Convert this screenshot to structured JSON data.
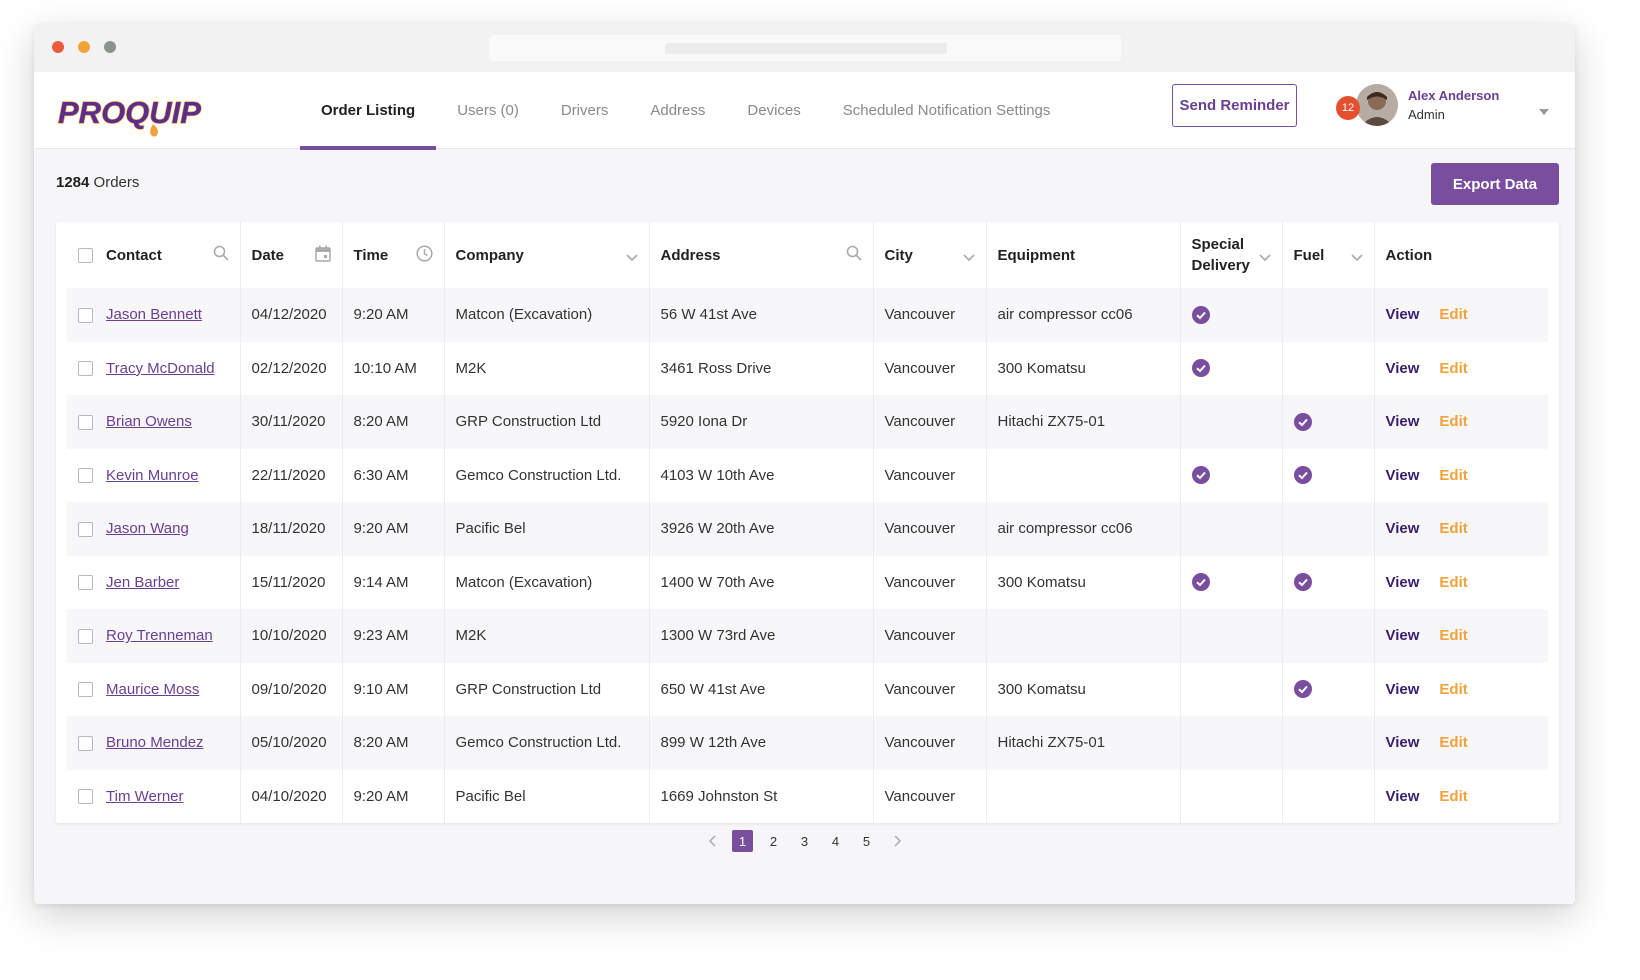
{
  "brand": {
    "logo_text": "PROQUIP",
    "accent": "#7a4e9e",
    "logo_color": "#5b2d8c",
    "logo_drop_color": "#f2a23a"
  },
  "nav": {
    "tabs": [
      {
        "label": "Order Listing",
        "active": true
      },
      {
        "label": "Users (0)",
        "active": false
      },
      {
        "label": "Drivers",
        "active": false
      },
      {
        "label": "Address",
        "active": false
      },
      {
        "label": "Devices",
        "active": false
      },
      {
        "label": "Scheduled Notification Settings",
        "active": false
      }
    ],
    "send_reminder_label": "Send Reminder",
    "notification_count": "12",
    "user": {
      "name": "Alex Anderson",
      "role": "Admin"
    }
  },
  "summary": {
    "count": "1284",
    "count_label": "Orders"
  },
  "export_label": "Export Data",
  "table": {
    "columns": [
      {
        "label": "Contact",
        "icon": "search-icon"
      },
      {
        "label": "Date",
        "icon": "calendar-icon"
      },
      {
        "label": "Time",
        "icon": "clock-icon"
      },
      {
        "label": "Company",
        "icon": "chevron-down-icon"
      },
      {
        "label": "Address",
        "icon": "search-icon"
      },
      {
        "label": "City",
        "icon": "chevron-down-icon"
      },
      {
        "label": "Equipment",
        "icon": ""
      },
      {
        "label": "Special Delivery",
        "icon": "chevron-down-icon"
      },
      {
        "label": "Fuel",
        "icon": "chevron-down-icon"
      },
      {
        "label": "Action",
        "icon": ""
      }
    ],
    "view_label": "View",
    "edit_label": "Edit",
    "rows": [
      {
        "contact": "Jason Bennett",
        "date": "04/12/2020",
        "time": "9:20 AM",
        "company": "Matcon (Excavation)",
        "address": "56 W 41st Ave",
        "city": "Vancouver",
        "equipment": "air compressor cc06",
        "special": true,
        "fuel": false
      },
      {
        "contact": "Tracy McDonald",
        "date": "02/12/2020",
        "time": "10:10 AM",
        "company": "M2K",
        "address": "3461 Ross Drive",
        "city": "Vancouver",
        "equipment": "300 Komatsu",
        "special": true,
        "fuel": false
      },
      {
        "contact": "Brian Owens",
        "date": "30/11/2020",
        "time": "8:20 AM",
        "company": "GRP Construction Ltd",
        "address": "5920 Iona Dr",
        "city": "Vancouver",
        "equipment": "Hitachi ZX75-01",
        "special": false,
        "fuel": true
      },
      {
        "contact": "Kevin Munroe",
        "date": "22/11/2020",
        "time": "6:30 AM",
        "company": "Gemco Construction Ltd.",
        "address": "4103 W 10th Ave",
        "city": "Vancouver",
        "equipment": "",
        "special": true,
        "fuel": true
      },
      {
        "contact": "Jason Wang",
        "date": "18/11/2020",
        "time": "9:20 AM",
        "company": "Pacific Bel",
        "address": "3926 W 20th Ave",
        "city": "Vancouver",
        "equipment": "air compressor cc06",
        "special": false,
        "fuel": false
      },
      {
        "contact": "Jen Barber",
        "date": "15/11/2020",
        "time": "9:14 AM",
        "company": "Matcon (Excavation)",
        "address": "1400 W 70th Ave",
        "city": "Vancouver",
        "equipment": "300 Komatsu",
        "special": true,
        "fuel": true
      },
      {
        "contact": "Roy Trenneman",
        "date": "10/10/2020",
        "time": "9:23 AM",
        "company": "M2K",
        "address": "1300 W 73rd Ave",
        "city": "Vancouver",
        "equipment": "",
        "special": false,
        "fuel": false
      },
      {
        "contact": "Maurice Moss",
        "date": "09/10/2020",
        "time": "9:10 AM",
        "company": "GRP Construction Ltd",
        "address": "650 W 41st Ave",
        "city": "Vancouver",
        "equipment": "300 Komatsu",
        "special": false,
        "fuel": true
      },
      {
        "contact": "Bruno Mendez",
        "date": "05/10/2020",
        "time": "8:20 AM",
        "company": "Gemco Construction Ltd.",
        "address": "899 W 12th Ave",
        "city": "Vancouver",
        "equipment": "Hitachi ZX75-01",
        "special": false,
        "fuel": false
      },
      {
        "contact": "Tim Werner",
        "date": "04/10/2020",
        "time": "9:20 AM",
        "company": "Pacific Bel",
        "address": "1669 Johnston St",
        "city": "Vancouver",
        "equipment": "",
        "special": false,
        "fuel": false
      }
    ]
  },
  "pagination": {
    "pages": [
      "1",
      "2",
      "3",
      "4",
      "5"
    ],
    "current": "1"
  }
}
